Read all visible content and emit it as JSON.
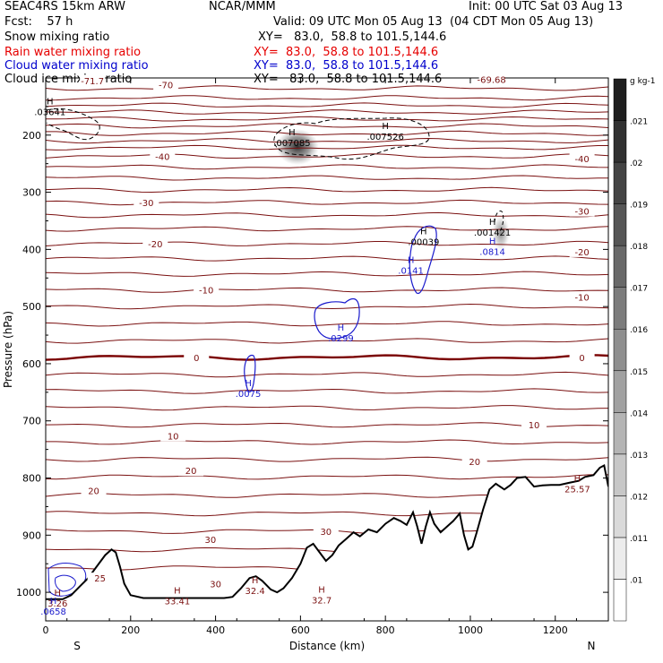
{
  "header": {
    "model": "SEAC4RS 15km ARW",
    "org": "NCAR/MMM",
    "init": "Init: 00 UTC Sat 03 Aug 13",
    "fcst": "Fcst:    57 h",
    "valid": "Valid: 09 UTC Mon 05 Aug 13  (04 CDT Mon 05 Aug 13)",
    "fields": [
      {
        "name": "Snow mixing ratio",
        "xy": "XY=   83.0,  58.8 to 101.5,144.6",
        "color": "#000000"
      },
      {
        "name": "Rain water mixing ratio",
        "xy": "XY=  83.0,  58.8 to 101.5,144.6",
        "color": "#e60000"
      },
      {
        "name": "Cloud water mixing ratio",
        "xy": "XY=  83.0,  58.8 to 101.5,144.6",
        "color": "#0000cc"
      },
      {
        "name": "Cloud ice mixing ratio",
        "xy": "XY=   83.0,  58.8 to 101.5,144.6",
        "color": "#000000"
      }
    ]
  },
  "colors": {
    "temperature": "#7a1010",
    "freezing": "#7a0000",
    "cloud_water": "#1a1acc",
    "cloud_ice": "#000000",
    "terrain": "#000000"
  },
  "chart_data": {
    "type": "contour cross-section",
    "xlabel": "Distance (km)",
    "ylabel": "Pressure (hPa)",
    "xlim": [
      0,
      1325
    ],
    "ylim": [
      1050,
      100
    ],
    "x_ticks": [
      0,
      200,
      400,
      600,
      800,
      1000,
      1200
    ],
    "y_ticks": [
      200,
      300,
      400,
      500,
      600,
      700,
      800,
      900,
      1000
    ],
    "y_tick_labels": [
      "200",
      "300",
      "400",
      "500",
      "600",
      "700",
      "800",
      "900",
      "1000"
    ],
    "edge_labels": {
      "left": "S",
      "right": "N"
    },
    "temperature_labels": [
      {
        "text": "-71.7",
        "x": 110,
        "p": 105
      },
      {
        "text": "-70",
        "x": 283,
        "p": 112
      },
      {
        "text": "-69.68",
        "x": 1050,
        "p": 102
      },
      {
        "text": "-40",
        "x": 275,
        "p": 237
      },
      {
        "text": "-40",
        "x": 1263,
        "p": 241
      },
      {
        "text": "-30",
        "x": 237,
        "p": 318
      },
      {
        "text": "-30",
        "x": 1263,
        "p": 333
      },
      {
        "text": "-20",
        "x": 258,
        "p": 390
      },
      {
        "text": "-20",
        "x": 1263,
        "p": 404
      },
      {
        "text": "-10",
        "x": 378,
        "p": 471
      },
      {
        "text": "-10",
        "x": 1263,
        "p": 483
      },
      {
        "text": "0",
        "x": 355,
        "p": 589
      },
      {
        "text": "0",
        "x": 1263,
        "p": 589
      },
      {
        "text": "10",
        "x": 300,
        "p": 726
      },
      {
        "text": "10",
        "x": 1150,
        "p": 707
      },
      {
        "text": "20",
        "x": 113,
        "p": 822
      },
      {
        "text": "20",
        "x": 342,
        "p": 787
      },
      {
        "text": "20",
        "x": 1010,
        "p": 771
      },
      {
        "text": "30",
        "x": 388,
        "p": 907
      },
      {
        "text": "30",
        "x": 660,
        "p": 893
      },
      {
        "text": "30",
        "x": 400,
        "p": 985
      },
      {
        "text": "25",
        "x": 128,
        "p": 975
      }
    ],
    "maxima": [
      {
        "text": ".03641",
        "x": 10,
        "p": 159,
        "color": "#000000"
      },
      {
        "text": ".007085",
        "x": 580,
        "p": 213,
        "color": "#000000"
      },
      {
        "text": ".007526",
        "x": 800,
        "p": 202,
        "color": "#000000"
      },
      {
        "text": ".00039",
        "x": 890,
        "p": 386,
        "color": "#000000"
      },
      {
        "text": ".001421",
        "x": 1052,
        "p": 370,
        "color": "#000000"
      },
      {
        "text": ".0141",
        "x": 860,
        "p": 436,
        "color": "#1a1acc"
      },
      {
        "text": ".0814",
        "x": 1052,
        "p": 403,
        "color": "#1a1acc"
      },
      {
        "text": ".0299",
        "x": 695,
        "p": 555,
        "color": "#1a1acc"
      },
      {
        "text": ".0075",
        "x": 477,
        "p": 652,
        "color": "#1a1acc"
      },
      {
        "text": "33.41",
        "x": 310,
        "p": 1015,
        "color": "#7a1010"
      },
      {
        "text": "32.4",
        "x": 493,
        "p": 997,
        "color": "#7a1010"
      },
      {
        "text": "32.7",
        "x": 650,
        "p": 1013,
        "color": "#7a1010"
      },
      {
        "text": "25.57",
        "x": 1252,
        "p": 819,
        "color": "#7a1010"
      },
      {
        "text": "3.26",
        "x": 28,
        "p": 1019,
        "color": "#7a1010"
      },
      {
        "text": ".0658",
        "x": 18,
        "p": 1033,
        "color": "#1a1acc"
      }
    ],
    "terrain": [
      [
        0,
        1012
      ],
      [
        20,
        1012
      ],
      [
        40,
        1012
      ],
      [
        60,
        1005
      ],
      [
        80,
        990
      ],
      [
        100,
        975
      ],
      [
        120,
        955
      ],
      [
        140,
        935
      ],
      [
        155,
        925
      ],
      [
        165,
        930
      ],
      [
        175,
        955
      ],
      [
        185,
        985
      ],
      [
        200,
        1005
      ],
      [
        230,
        1010
      ],
      [
        280,
        1010
      ],
      [
        350,
        1010
      ],
      [
        420,
        1010
      ],
      [
        440,
        1008
      ],
      [
        460,
        993
      ],
      [
        480,
        975
      ],
      [
        495,
        972
      ],
      [
        510,
        980
      ],
      [
        530,
        995
      ],
      [
        545,
        1000
      ],
      [
        560,
        993
      ],
      [
        580,
        975
      ],
      [
        600,
        950
      ],
      [
        615,
        922
      ],
      [
        630,
        915
      ],
      [
        645,
        930
      ],
      [
        660,
        945
      ],
      [
        675,
        935
      ],
      [
        690,
        918
      ],
      [
        710,
        905
      ],
      [
        725,
        895
      ],
      [
        740,
        902
      ],
      [
        760,
        890
      ],
      [
        780,
        895
      ],
      [
        800,
        880
      ],
      [
        820,
        870
      ],
      [
        835,
        875
      ],
      [
        850,
        882
      ],
      [
        865,
        860
      ],
      [
        875,
        885
      ],
      [
        885,
        915
      ],
      [
        895,
        885
      ],
      [
        905,
        860
      ],
      [
        915,
        880
      ],
      [
        930,
        895
      ],
      [
        945,
        885
      ],
      [
        960,
        875
      ],
      [
        975,
        862
      ],
      [
        985,
        900
      ],
      [
        995,
        925
      ],
      [
        1005,
        920
      ],
      [
        1015,
        895
      ],
      [
        1030,
        855
      ],
      [
        1045,
        820
      ],
      [
        1060,
        810
      ],
      [
        1080,
        820
      ],
      [
        1095,
        812
      ],
      [
        1110,
        800
      ],
      [
        1130,
        798
      ],
      [
        1150,
        815
      ],
      [
        1170,
        813
      ],
      [
        1190,
        812
      ],
      [
        1210,
        812
      ],
      [
        1235,
        808
      ],
      [
        1255,
        805
      ],
      [
        1270,
        798
      ],
      [
        1290,
        795
      ],
      [
        1305,
        782
      ],
      [
        1315,
        778
      ],
      [
        1325,
        815
      ]
    ],
    "isotherm_pressures": [
      118,
      135,
      148,
      160,
      172,
      184,
      197,
      210,
      222,
      237,
      256,
      275,
      296,
      318,
      340,
      364,
      390,
      416,
      443,
      471,
      500,
      530,
      560,
      589,
      619,
      648,
      677,
      707,
      737,
      767,
      798,
      830,
      862,
      893,
      925,
      957
    ],
    "grayscale_bar": {
      "unit": "g kg-1",
      "levels": [
        ".01",
        ".011",
        ".012",
        ".013",
        ".014",
        ".015",
        ".016",
        ".017",
        ".018",
        ".019",
        ".02",
        ".021"
      ]
    }
  }
}
